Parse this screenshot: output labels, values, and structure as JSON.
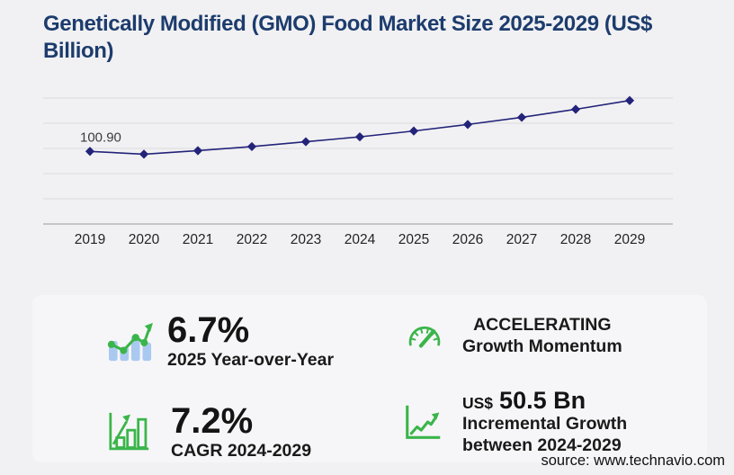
{
  "title": {
    "text": "Genetically Modified (GMO) Food Market Size 2025-2029 (US$ Billion)"
  },
  "chart_data": {
    "type": "line",
    "title": "",
    "xlabel": "",
    "ylabel": "",
    "categories": [
      "2019",
      "2020",
      "2021",
      "2022",
      "2023",
      "2024",
      "2025",
      "2026",
      "2027",
      "2028",
      "2029"
    ],
    "values": [
      100.9,
      97.0,
      101.9,
      107.6,
      114.3,
      121.1,
      129.2,
      138.3,
      148.2,
      159.4,
      171.6
    ],
    "labeled_points": [
      {
        "index": 0,
        "text": "100.90"
      }
    ],
    "ylim": [
      0,
      175
    ],
    "ytick_step": 35,
    "grid": true,
    "legend": false,
    "marker": "diamond"
  },
  "stats": [
    {
      "id": "yoy",
      "icon": "bar-line-growth-icon",
      "value": "6.7%",
      "label": "2025 Year-over-Year"
    },
    {
      "id": "momentum",
      "icon": "speedometer-icon",
      "line1": "ACCELERATING",
      "line2": "Growth Momentum"
    },
    {
      "id": "cagr",
      "icon": "bar-chart-arrow-icon",
      "value": "7.2%",
      "label": "CAGR 2024-2029"
    },
    {
      "id": "incremental",
      "icon": "line-arrow-icon",
      "currency": "US$",
      "value": "50.5 Bn",
      "label_line1": "Incremental Growth",
      "label_line2": "between 2024-2029"
    }
  ],
  "source": {
    "text": "source: www.technavio.com"
  },
  "colors": {
    "background": "#f1f1f3",
    "panel": "#f6f6f8",
    "title": "#1d3c6d",
    "line": "#23237a",
    "icon_green": "#3bb54a",
    "icon_blue": "#aac9f1"
  }
}
